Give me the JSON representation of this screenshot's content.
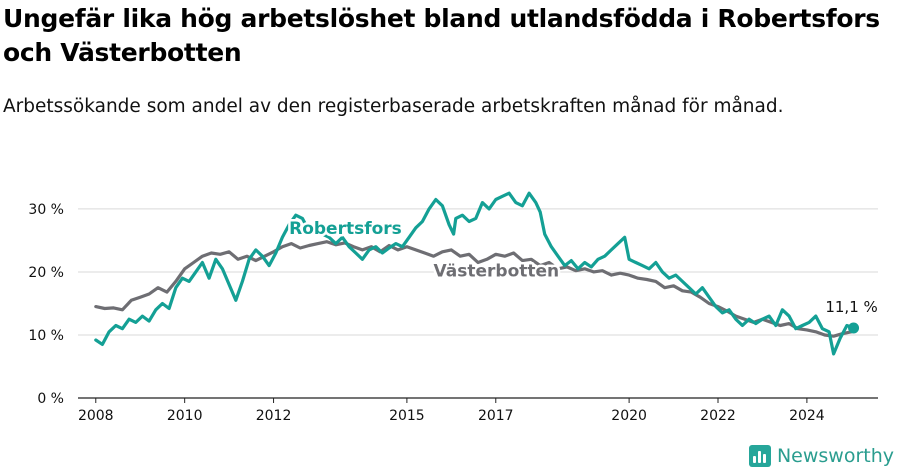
{
  "title": "Ungefär lika hög arbetslöshet bland utlandsfödda i Robertsfors och Västerbotten",
  "subtitle": "Arbetssökande som andel av den registerbaserade arbetskraften månad för månad.",
  "brand": "Newsworthy",
  "colors": {
    "robertsfors": "#14a095",
    "vasterbotten": "#6e6e73",
    "grid": "#d9d9d9",
    "axis": "#222222"
  },
  "chart_data": {
    "type": "line",
    "xlim": [
      2007.6,
      2025.6
    ],
    "ylim": [
      0,
      33
    ],
    "y_ticks": [
      {
        "value": 0,
        "label": "0 %"
      },
      {
        "value": 10,
        "label": "10 %"
      },
      {
        "value": 20,
        "label": "20 %"
      },
      {
        "value": 30,
        "label": "30 %"
      }
    ],
    "x_ticks": [
      {
        "value": 2008,
        "label": "2008"
      },
      {
        "value": 2010,
        "label": "2010"
      },
      {
        "value": 2012,
        "label": "2012"
      },
      {
        "value": 2015,
        "label": "2015"
      },
      {
        "value": 2017,
        "label": "2017"
      },
      {
        "value": 2020,
        "label": "2020"
      },
      {
        "value": 2022,
        "label": "2022"
      },
      {
        "value": 2024,
        "label": "2024"
      }
    ],
    "series": [
      {
        "name": "Västerbotten",
        "key": "vasterbotten",
        "label_at": [
          2015.6,
          19.3
        ],
        "points": [
          [
            2008.0,
            14.5
          ],
          [
            2008.2,
            14.2
          ],
          [
            2008.4,
            14.3
          ],
          [
            2008.6,
            14.0
          ],
          [
            2008.8,
            15.5
          ],
          [
            2009.0,
            16.0
          ],
          [
            2009.2,
            16.5
          ],
          [
            2009.4,
            17.5
          ],
          [
            2009.6,
            16.8
          ],
          [
            2009.8,
            18.5
          ],
          [
            2010.0,
            20.5
          ],
          [
            2010.2,
            21.5
          ],
          [
            2010.4,
            22.5
          ],
          [
            2010.6,
            23.0
          ],
          [
            2010.8,
            22.8
          ],
          [
            2011.0,
            23.2
          ],
          [
            2011.2,
            22.0
          ],
          [
            2011.4,
            22.5
          ],
          [
            2011.6,
            21.8
          ],
          [
            2011.8,
            22.5
          ],
          [
            2012.0,
            23.2
          ],
          [
            2012.2,
            24.0
          ],
          [
            2012.4,
            24.5
          ],
          [
            2012.6,
            23.8
          ],
          [
            2012.8,
            24.2
          ],
          [
            2013.0,
            24.5
          ],
          [
            2013.2,
            24.8
          ],
          [
            2013.4,
            24.3
          ],
          [
            2013.6,
            24.6
          ],
          [
            2013.8,
            24.0
          ],
          [
            2014.0,
            23.5
          ],
          [
            2014.2,
            24.0
          ],
          [
            2014.4,
            23.2
          ],
          [
            2014.6,
            24.2
          ],
          [
            2014.8,
            23.5
          ],
          [
            2015.0,
            24.0
          ],
          [
            2015.2,
            23.5
          ],
          [
            2015.4,
            23.0
          ],
          [
            2015.6,
            22.5
          ],
          [
            2015.8,
            23.2
          ],
          [
            2016.0,
            23.5
          ],
          [
            2016.2,
            22.5
          ],
          [
            2016.4,
            22.8
          ],
          [
            2016.6,
            21.5
          ],
          [
            2016.8,
            22.0
          ],
          [
            2017.0,
            22.8
          ],
          [
            2017.2,
            22.5
          ],
          [
            2017.4,
            23.0
          ],
          [
            2017.6,
            21.8
          ],
          [
            2017.8,
            22.0
          ],
          [
            2018.0,
            21.0
          ],
          [
            2018.2,
            21.5
          ],
          [
            2018.4,
            20.5
          ],
          [
            2018.6,
            20.8
          ],
          [
            2018.8,
            20.2
          ],
          [
            2019.0,
            20.5
          ],
          [
            2019.2,
            20.0
          ],
          [
            2019.4,
            20.2
          ],
          [
            2019.6,
            19.5
          ],
          [
            2019.8,
            19.8
          ],
          [
            2020.0,
            19.5
          ],
          [
            2020.2,
            19.0
          ],
          [
            2020.4,
            18.8
          ],
          [
            2020.6,
            18.5
          ],
          [
            2020.8,
            17.5
          ],
          [
            2021.0,
            17.8
          ],
          [
            2021.2,
            17.0
          ],
          [
            2021.4,
            16.8
          ],
          [
            2021.6,
            16.0
          ],
          [
            2021.8,
            15.0
          ],
          [
            2022.0,
            14.5
          ],
          [
            2022.2,
            13.8
          ],
          [
            2022.4,
            13.0
          ],
          [
            2022.6,
            12.5
          ],
          [
            2022.8,
            12.0
          ],
          [
            2023.0,
            12.5
          ],
          [
            2023.2,
            12.0
          ],
          [
            2023.4,
            11.5
          ],
          [
            2023.6,
            11.8
          ],
          [
            2023.8,
            11.0
          ],
          [
            2024.0,
            10.8
          ],
          [
            2024.2,
            10.5
          ],
          [
            2024.4,
            10.0
          ],
          [
            2024.6,
            9.8
          ],
          [
            2024.8,
            10.2
          ],
          [
            2025.0,
            10.5
          ]
        ]
      },
      {
        "name": "Robertsfors",
        "key": "robertsfors",
        "label_at": [
          2012.35,
          26.0
        ],
        "last_label": "11,1 %",
        "points": [
          [
            2008.0,
            9.2
          ],
          [
            2008.15,
            8.5
          ],
          [
            2008.3,
            10.5
          ],
          [
            2008.45,
            11.5
          ],
          [
            2008.6,
            11.0
          ],
          [
            2008.75,
            12.5
          ],
          [
            2008.9,
            12.0
          ],
          [
            2009.05,
            13.0
          ],
          [
            2009.2,
            12.2
          ],
          [
            2009.35,
            14.0
          ],
          [
            2009.5,
            15.0
          ],
          [
            2009.65,
            14.2
          ],
          [
            2009.8,
            17.5
          ],
          [
            2009.95,
            19.0
          ],
          [
            2010.1,
            18.5
          ],
          [
            2010.25,
            20.0
          ],
          [
            2010.4,
            21.5
          ],
          [
            2010.55,
            19.0
          ],
          [
            2010.7,
            22.0
          ],
          [
            2010.85,
            20.5
          ],
          [
            2011.0,
            18.0
          ],
          [
            2011.15,
            15.5
          ],
          [
            2011.3,
            18.5
          ],
          [
            2011.45,
            22.0
          ],
          [
            2011.6,
            23.5
          ],
          [
            2011.75,
            22.5
          ],
          [
            2011.9,
            21.0
          ],
          [
            2012.05,
            23.0
          ],
          [
            2012.2,
            25.5
          ],
          [
            2012.35,
            27.5
          ],
          [
            2012.5,
            29.0
          ],
          [
            2012.65,
            28.5
          ],
          [
            2012.8,
            26.5
          ],
          [
            2012.95,
            27.0
          ],
          [
            2013.1,
            26.0
          ],
          [
            2013.25,
            25.5
          ],
          [
            2013.4,
            24.5
          ],
          [
            2013.55,
            25.5
          ],
          [
            2013.7,
            24.0
          ],
          [
            2013.85,
            23.0
          ],
          [
            2014.0,
            22.0
          ],
          [
            2014.15,
            23.5
          ],
          [
            2014.3,
            24.0
          ],
          [
            2014.45,
            23.0
          ],
          [
            2014.6,
            23.8
          ],
          [
            2014.75,
            24.5
          ],
          [
            2014.9,
            24.0
          ],
          [
            2015.05,
            25.5
          ],
          [
            2015.2,
            27.0
          ],
          [
            2015.35,
            28.0
          ],
          [
            2015.5,
            30.0
          ],
          [
            2015.65,
            31.5
          ],
          [
            2015.8,
            30.5
          ],
          [
            2015.95,
            27.5
          ],
          [
            2016.05,
            26.0
          ],
          [
            2016.1,
            28.5
          ],
          [
            2016.25,
            29.0
          ],
          [
            2016.4,
            28.0
          ],
          [
            2016.55,
            28.5
          ],
          [
            2016.7,
            31.0
          ],
          [
            2016.85,
            30.0
          ],
          [
            2017.0,
            31.5
          ],
          [
            2017.15,
            32.0
          ],
          [
            2017.3,
            32.5
          ],
          [
            2017.45,
            31.0
          ],
          [
            2017.6,
            30.5
          ],
          [
            2017.75,
            32.5
          ],
          [
            2017.9,
            31.0
          ],
          [
            2018.0,
            29.5
          ],
          [
            2018.1,
            26.0
          ],
          [
            2018.25,
            24.0
          ],
          [
            2018.4,
            22.5
          ],
          [
            2018.55,
            21.0
          ],
          [
            2018.7,
            21.8
          ],
          [
            2018.85,
            20.5
          ],
          [
            2019.0,
            21.5
          ],
          [
            2019.15,
            20.8
          ],
          [
            2019.3,
            22.0
          ],
          [
            2019.45,
            22.5
          ],
          [
            2019.6,
            23.5
          ],
          [
            2019.75,
            24.5
          ],
          [
            2019.9,
            25.5
          ],
          [
            2020.0,
            22.0
          ],
          [
            2020.15,
            21.5
          ],
          [
            2020.3,
            21.0
          ],
          [
            2020.45,
            20.5
          ],
          [
            2020.6,
            21.5
          ],
          [
            2020.75,
            20.0
          ],
          [
            2020.9,
            19.0
          ],
          [
            2021.05,
            19.5
          ],
          [
            2021.2,
            18.5
          ],
          [
            2021.35,
            17.5
          ],
          [
            2021.5,
            16.5
          ],
          [
            2021.65,
            17.5
          ],
          [
            2021.8,
            16.0
          ],
          [
            2021.95,
            14.5
          ],
          [
            2022.1,
            13.5
          ],
          [
            2022.25,
            14.0
          ],
          [
            2022.4,
            12.5
          ],
          [
            2022.55,
            11.5
          ],
          [
            2022.7,
            12.5
          ],
          [
            2022.85,
            11.8
          ],
          [
            2023.0,
            12.5
          ],
          [
            2023.15,
            13.0
          ],
          [
            2023.3,
            11.5
          ],
          [
            2023.45,
            14.0
          ],
          [
            2023.6,
            13.0
          ],
          [
            2023.75,
            11.0
          ],
          [
            2023.9,
            11.5
          ],
          [
            2024.05,
            12.0
          ],
          [
            2024.2,
            13.0
          ],
          [
            2024.35,
            11.0
          ],
          [
            2024.5,
            10.5
          ],
          [
            2024.6,
            7.0
          ],
          [
            2024.75,
            9.5
          ],
          [
            2024.9,
            11.5
          ],
          [
            2025.05,
            11.1
          ]
        ]
      }
    ]
  }
}
